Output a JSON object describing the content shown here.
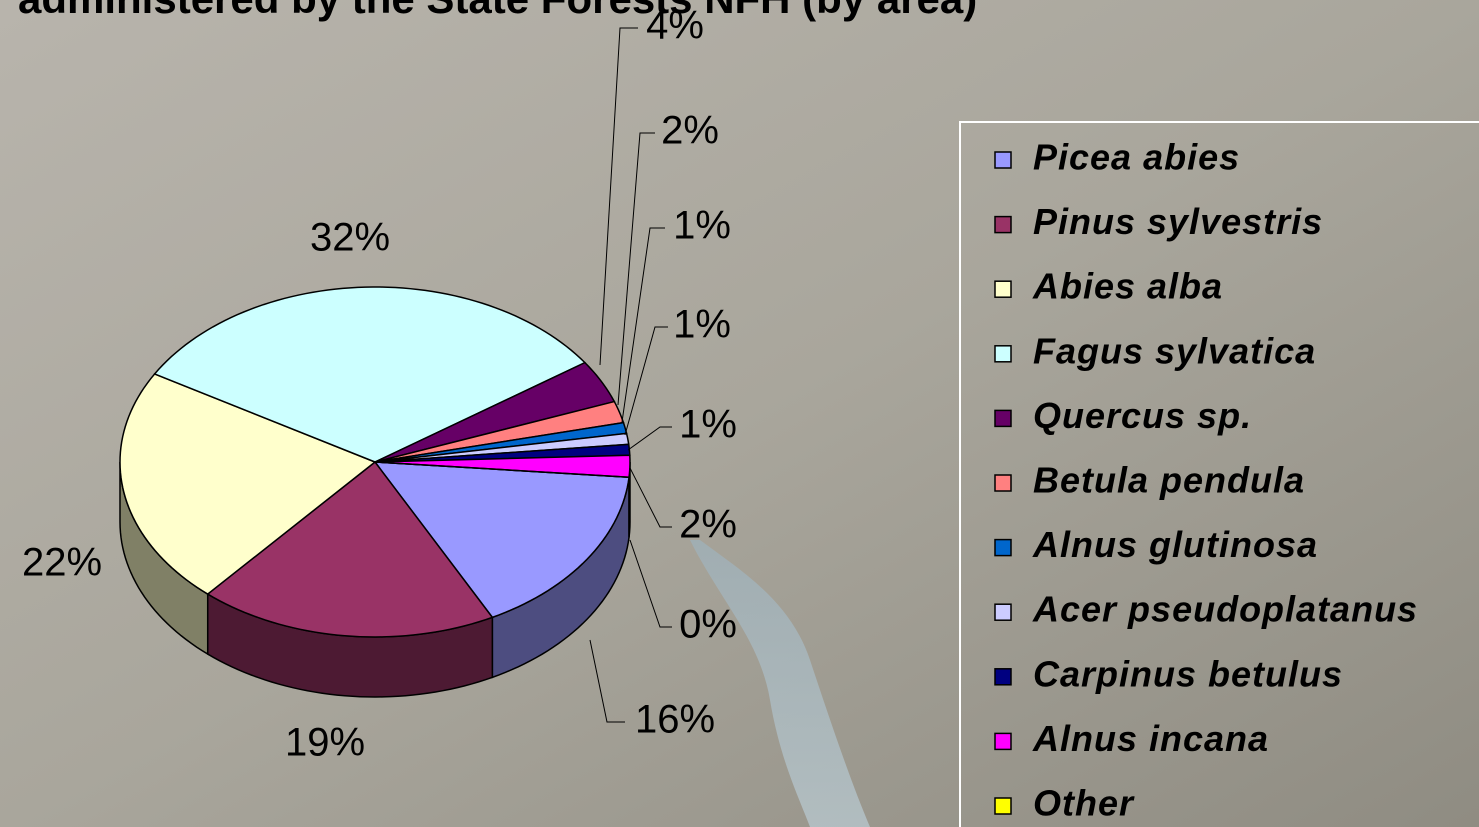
{
  "chart_data": {
    "type": "pie",
    "title": "administered by the State Forests NFH (by area)",
    "categories": [
      "Picea abies",
      "Pinus sylvestris",
      "Abies alba",
      "Fagus sylvatica",
      "Quercus sp.",
      "Betula pendula",
      "Alnus glutinosa",
      "Acer pseudoplatanus",
      "Carpinus betulus",
      "Alnus incana",
      "Other"
    ],
    "values": [
      16,
      19,
      22,
      32,
      4,
      2,
      1,
      1,
      1,
      2,
      0
    ],
    "value_labels": [
      "16%",
      "19%",
      "22%",
      "32%",
      "4%",
      "2%",
      "1%",
      "1%",
      "1%",
      "2%",
      "0%"
    ],
    "colors": [
      "#9999ff",
      "#993366",
      "#ffffcc",
      "#ccffff",
      "#660066",
      "#ff8080",
      "#0066cc",
      "#ccccff",
      "#000080",
      "#ff00ff",
      "#ffff00"
    ],
    "legend": "right"
  }
}
